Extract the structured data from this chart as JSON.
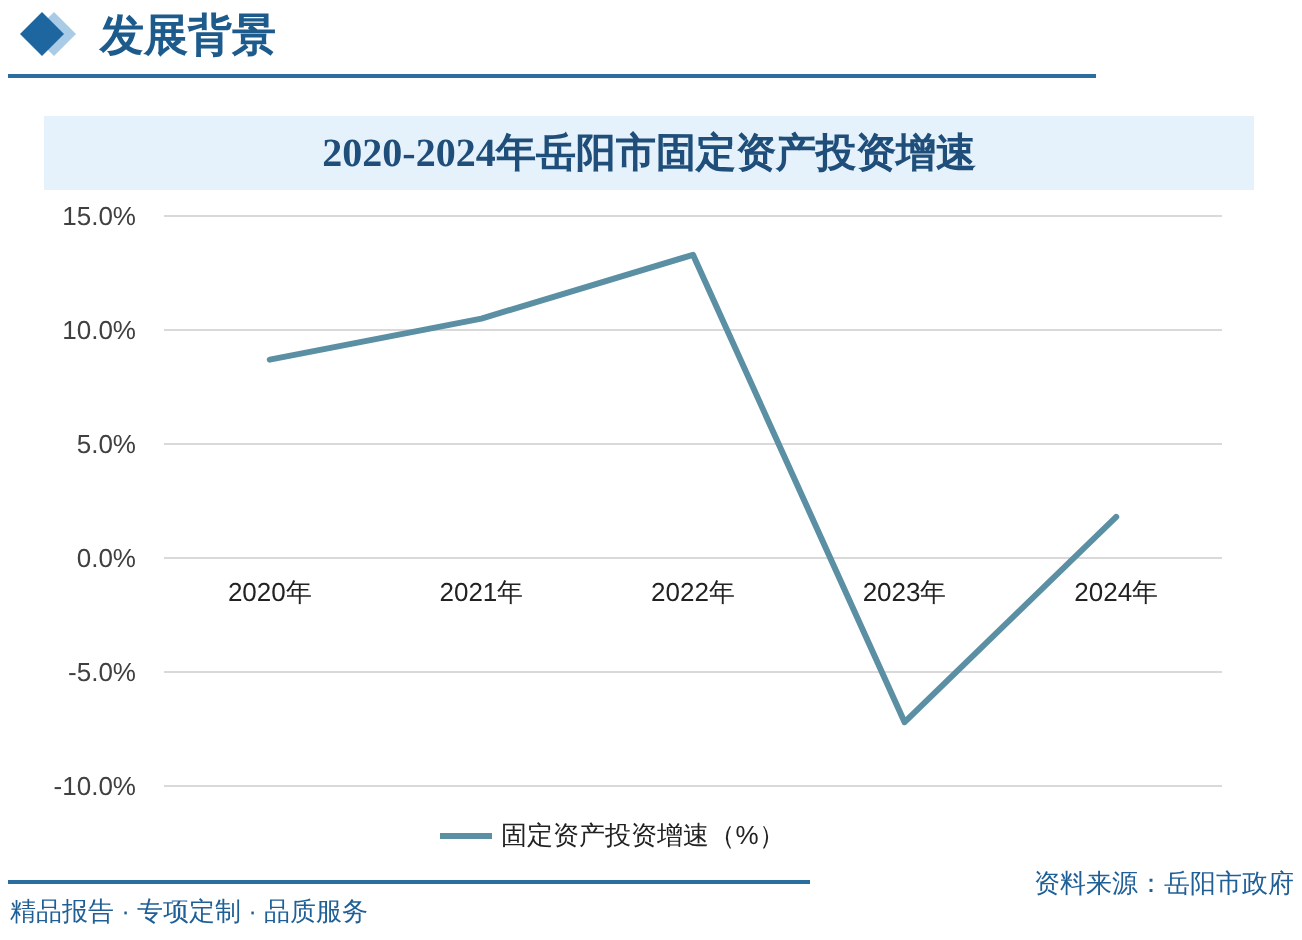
{
  "chart_data": {
    "type": "line",
    "title": "2020-2024年岳阳市固定资产投资增速",
    "categories": [
      "2020年",
      "2021年",
      "2022年",
      "2023年",
      "2024年"
    ],
    "series": [
      {
        "name": "固定资产投资增速（%）",
        "color": "#5b8fa3",
        "values": [
          8.7,
          10.5,
          13.3,
          -7.2,
          1.8
        ]
      }
    ],
    "ylim": [
      -10,
      15
    ],
    "yticks": [
      {
        "value": -10,
        "label": "-10.0%"
      },
      {
        "value": -5,
        "label": "-5.0%"
      },
      {
        "value": 0,
        "label": "0.0%"
      },
      {
        "value": 5,
        "label": "5.0%"
      },
      {
        "value": 10,
        "label": "10.0%"
      },
      {
        "value": 15,
        "label": "15.0%"
      }
    ],
    "grid": "y",
    "legend": "bottom",
    "annotations": [
      "发展背景",
      "精品报告 · 专项定制 · 品质服务",
      "资料来源：岳阳市政府"
    ]
  }
}
